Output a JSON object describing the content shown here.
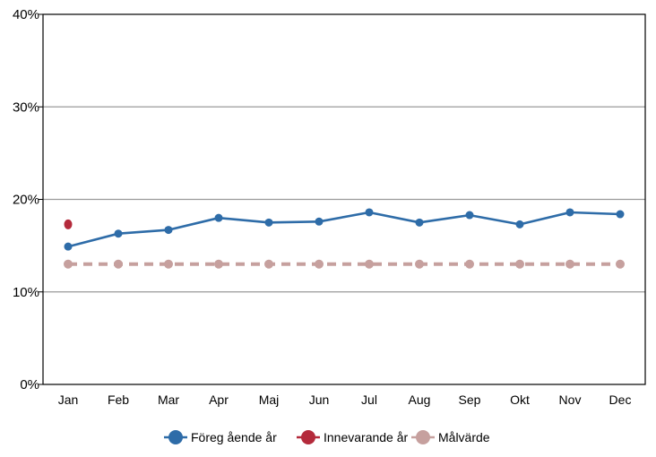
{
  "chart_data": {
    "type": "line",
    "title": "",
    "xlabel": "",
    "ylabel": "",
    "categories": [
      "Jan",
      "Feb",
      "Mar",
      "Apr",
      "Maj",
      "Jun",
      "Jul",
      "Aug",
      "Sep",
      "Okt",
      "Nov",
      "Dec"
    ],
    "y_ticks": [
      "0%",
      "10%",
      "20%",
      "30%",
      "40%"
    ],
    "ylim": [
      0,
      40
    ],
    "grid": true,
    "legend_position": "bottom",
    "series": [
      {
        "name": "Föreg ående år",
        "color": "#2e6ca8",
        "line_style": "solid",
        "values": [
          14.9,
          16.3,
          16.7,
          18.0,
          17.5,
          17.6,
          18.6,
          17.5,
          18.3,
          17.3,
          18.6,
          18.4
        ]
      },
      {
        "name": "Innevarande år",
        "color": "#b42a3b",
        "line_style": "solid",
        "values": [
          17.3,
          null,
          null,
          null,
          null,
          null,
          null,
          null,
          null,
          null,
          null,
          null
        ]
      },
      {
        "name": "Målvärde",
        "color": "#c6a09e",
        "line_style": "dashed",
        "values": [
          13,
          13,
          13,
          13,
          13,
          13,
          13,
          13,
          13,
          13,
          13,
          13
        ]
      }
    ]
  }
}
